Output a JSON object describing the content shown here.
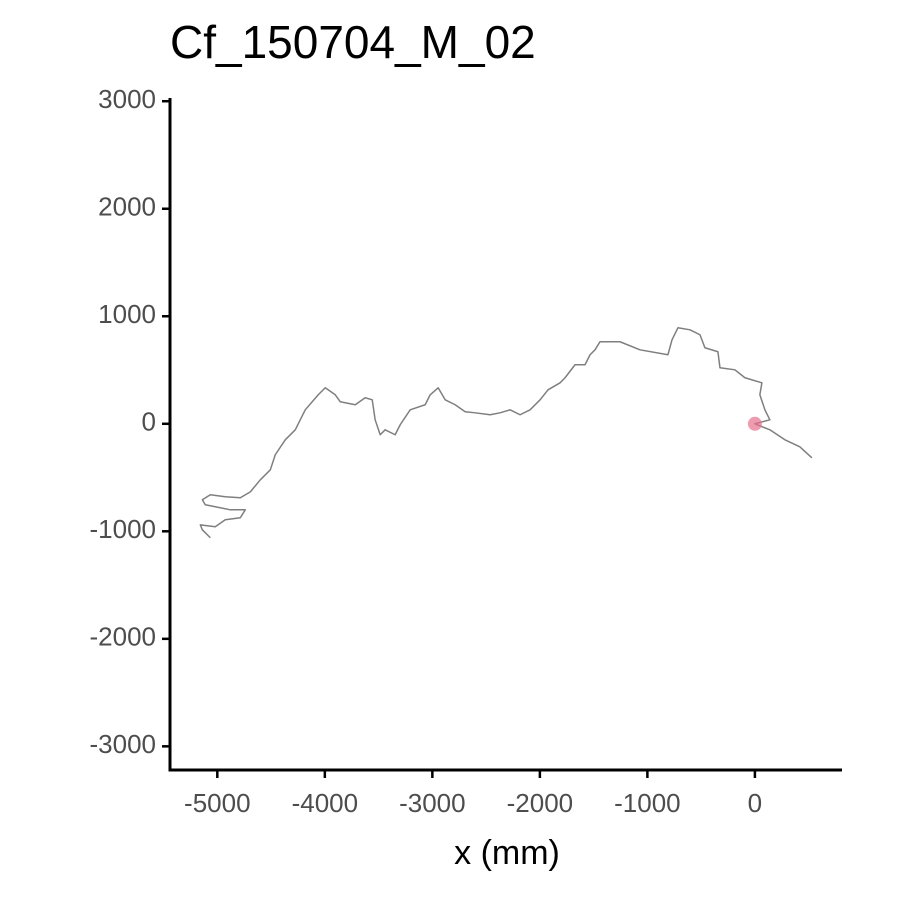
{
  "chart_data": {
    "type": "line",
    "title": "Cf_150704_M_02",
    "x_label": "x (mm)",
    "xlim": [
      -5440,
      810
    ],
    "ylim": [
      -3220,
      3030
    ],
    "xticks": [
      -5000,
      -4000,
      -3000,
      -2000,
      -1000,
      0
    ],
    "yticks": [
      -3000,
      -2000,
      -1000,
      0,
      1000,
      2000,
      3000
    ],
    "path": {
      "color": "#7f7f7f",
      "x": [
        530,
        418,
        279,
        139,
        0,
        139,
        93,
        46,
        65,
        -93,
        -186,
        -325,
        -344,
        -465,
        -511,
        -604,
        -716,
        -771,
        -809,
        -1069,
        -1255,
        -1441,
        -1487,
        -1533,
        -1580,
        -1673,
        -1766,
        -1812,
        -1924,
        -1998,
        -2091,
        -2184,
        -2277,
        -2370,
        -2463,
        -2602,
        -2695,
        -2788,
        -2881,
        -2946,
        -3020,
        -3067,
        -3206,
        -3299,
        -3346,
        -3439,
        -3485,
        -3532,
        -3559,
        -3625,
        -3717,
        -3857,
        -3903,
        -3996,
        -4061,
        -4182,
        -4275,
        -4368,
        -4461,
        -4507,
        -4600,
        -4693,
        -4786,
        -4926,
        -5065,
        -5139,
        -5112,
        -4879,
        -4740,
        -4786,
        -4926,
        -5019,
        -5158,
        -5139,
        -5065
      ],
      "y": [
        -316,
        -214,
        -149,
        -56,
        0,
        37,
        130,
        270,
        381,
        428,
        502,
        521,
        670,
        707,
        828,
        874,
        893,
        781,
        642,
        688,
        763,
        763,
        688,
        642,
        549,
        549,
        428,
        381,
        316,
        223,
        130,
        84,
        130,
        102,
        84,
        102,
        112,
        177,
        223,
        335,
        270,
        177,
        130,
        -9,
        -102,
        -56,
        -102,
        37,
        223,
        242,
        177,
        205,
        270,
        335,
        270,
        130,
        -56,
        -149,
        -288,
        -428,
        -521,
        -633,
        -688,
        -679,
        -660,
        -707,
        -753,
        -800,
        -800,
        -874,
        -893,
        -958,
        -940,
        -986,
        -1060
      ]
    },
    "start": {
      "x": 0,
      "y": 0,
      "color": "#e8718d"
    }
  }
}
